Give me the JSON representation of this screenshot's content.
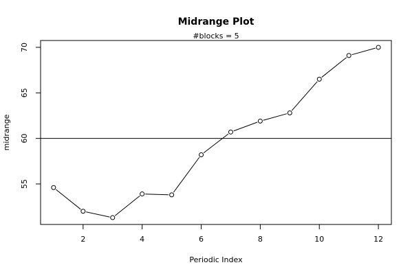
{
  "chart_data": {
    "type": "line",
    "title": "Midrange Plot",
    "subtitle": "#blocks =  5",
    "xlabel": "Periodic Index",
    "ylabel": "midrange",
    "x": [
      1,
      2,
      3,
      4,
      5,
      6,
      7,
      8,
      9,
      10,
      11,
      12
    ],
    "series": [
      {
        "values": [
          54.6,
          52.0,
          51.3,
          53.9,
          53.8,
          58.2,
          60.7,
          61.9,
          62.8,
          66.5,
          69.1,
          70.0
        ]
      }
    ],
    "reference_line": 60,
    "xlim": [
      0.56,
      12.44
    ],
    "ylim": [
      50.55,
      70.75
    ],
    "x_ticks": [
      2,
      4,
      6,
      8,
      10,
      12
    ],
    "x_tick_labels": [
      "2",
      "4",
      "6",
      "8",
      "10",
      "12"
    ],
    "y_ticks": [
      55,
      60,
      65,
      70
    ],
    "y_tick_labels": [
      "55",
      "60",
      "65",
      "70"
    ],
    "marker": "open-circle",
    "line_color": "#000000",
    "grid": false,
    "legend": false
  }
}
